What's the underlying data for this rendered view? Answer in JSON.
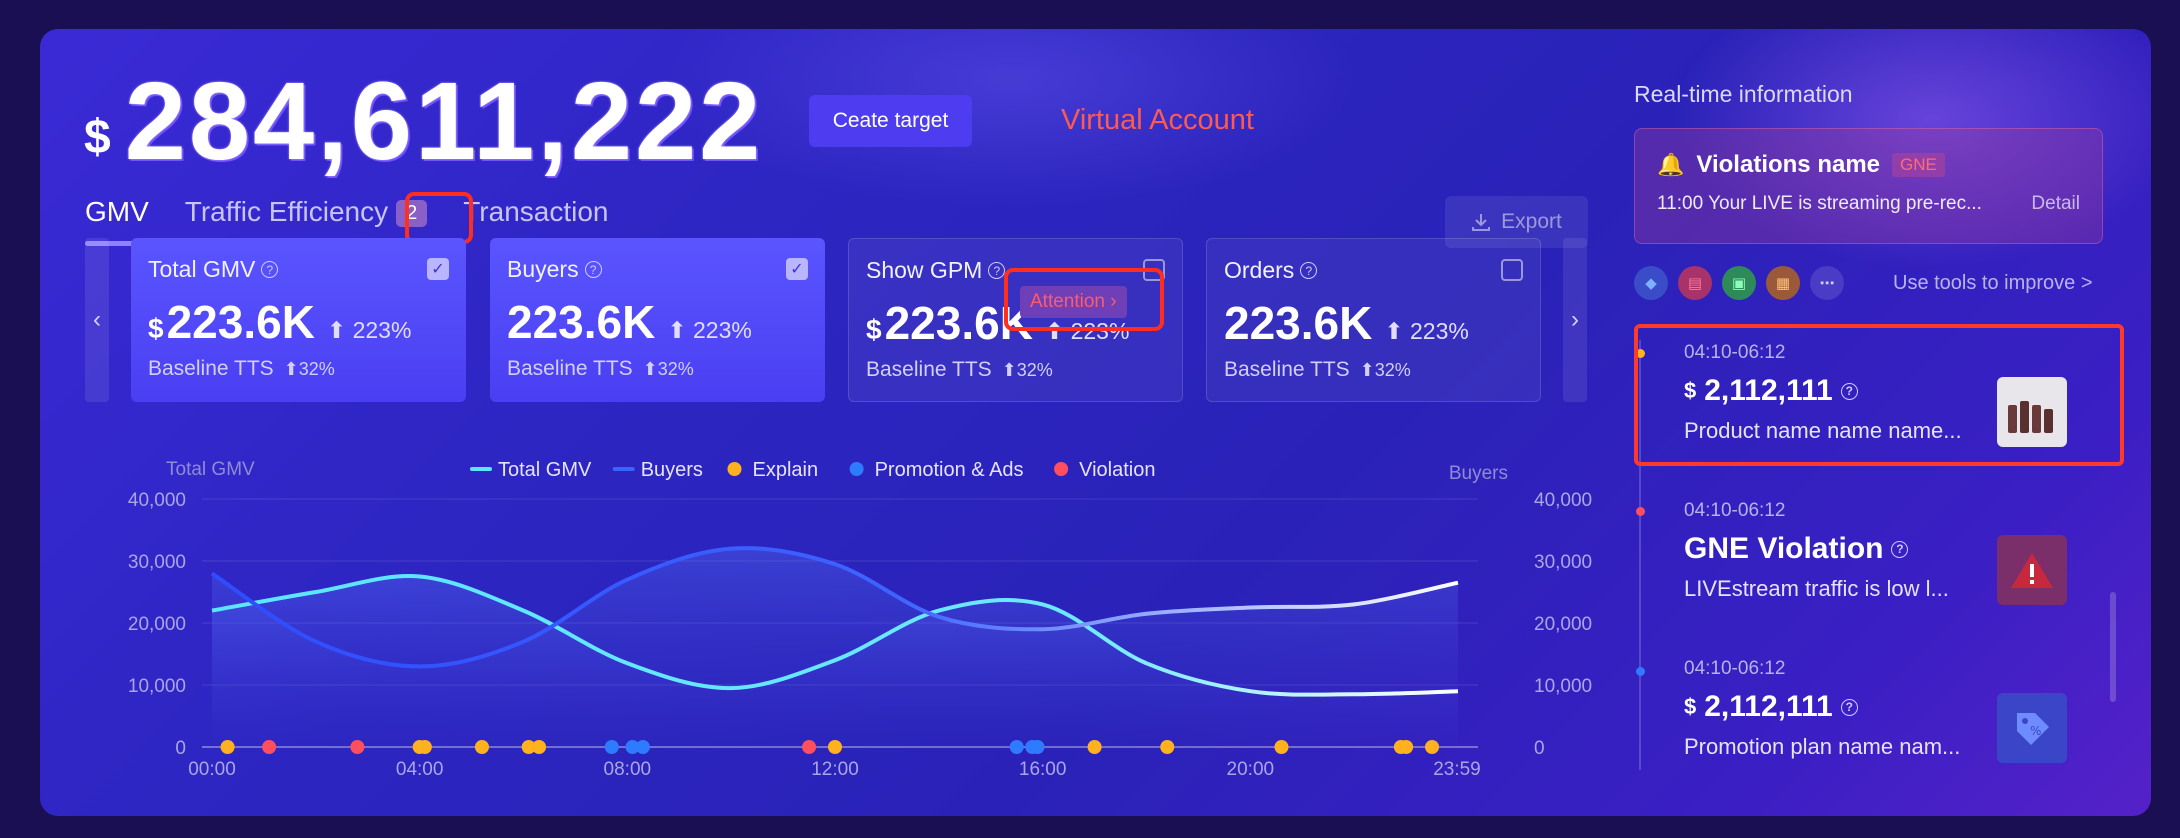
{
  "header": {
    "currency": "$",
    "total_amount": "284,611,222",
    "create_target": "Ceate target",
    "virtual_account": "Virtual Account"
  },
  "tabs": [
    {
      "label": "GMV",
      "active": true
    },
    {
      "label": "Traffic Efficiency",
      "badge": "2"
    },
    {
      "label": "Transaction"
    }
  ],
  "export_label": "Export",
  "metrics": [
    {
      "title": "Total GMV",
      "currency": "$",
      "value": "223.6K",
      "change": "223%",
      "baseline": "Baseline TTS",
      "baseline_change": "32%",
      "checked": true
    },
    {
      "title": "Buyers",
      "currency": "",
      "value": "223.6K",
      "change": "223%",
      "baseline": "Baseline TTS",
      "baseline_change": "32%",
      "checked": true
    },
    {
      "title": "Show GPM",
      "currency": "$",
      "value": "223.6K",
      "change": "223%",
      "baseline": "Baseline TTS",
      "baseline_change": "32%",
      "checked": false,
      "tag": "Attention"
    },
    {
      "title": "Orders",
      "currency": "",
      "value": "223.6K",
      "change": "223%",
      "baseline": "Baseline TTS",
      "baseline_change": "32%",
      "checked": false
    }
  ],
  "chart_data": {
    "type": "line",
    "ylabel_left": "Total GMV",
    "ylabel_right": "Buyers",
    "ylim": [
      0,
      40000
    ],
    "yticks": [
      "0",
      "10,000",
      "20,000",
      "30,000",
      "40,000"
    ],
    "xticks": [
      "00:00",
      "04:00",
      "08:00",
      "12:00",
      "16:00",
      "20:00",
      "23:59"
    ],
    "legend": [
      "Total GMV",
      "Buyers",
      "Explain",
      "Promotion & Ads",
      "Violation"
    ],
    "colors": {
      "Total GMV": "#5be6ff",
      "Buyers": "#3d63ff",
      "Explain": "#ffb21e",
      "Promotion & Ads": "#2f7bff",
      "Violation": "#ff4f5e"
    },
    "x": [
      0,
      2,
      4,
      6,
      8,
      10,
      12,
      14,
      16,
      18,
      20,
      22,
      24
    ],
    "series": [
      {
        "name": "Total GMV",
        "values": [
          22000,
          25000,
          27500,
          22000,
          13500,
          9500,
          14000,
          22000,
          23000,
          13500,
          9000,
          8500,
          9000
        ]
      },
      {
        "name": "Buyers",
        "values": [
          28000,
          17000,
          13000,
          17000,
          27000,
          32000,
          29500,
          21000,
          19000,
          21500,
          22500,
          23000,
          26500
        ]
      }
    ],
    "events": {
      "Explain": [
        0.3,
        4.0,
        4.1,
        5.2,
        6.1,
        6.3,
        12.0,
        17.0,
        18.4,
        20.6,
        22.9,
        23.0,
        23.5
      ],
      "Promotion & Ads": [
        7.7,
        8.1,
        8.3,
        15.5,
        15.8,
        15.9
      ],
      "Violation": [
        1.1,
        2.8,
        11.5
      ]
    }
  },
  "realtime": {
    "title": "Real-time information",
    "violation": {
      "name": "Violations name",
      "tag": "GNE",
      "text": "11:00 Your LIVE is streaming pre-rec...",
      "detail": "Detail"
    },
    "tools_link": "Use tools to improve >",
    "timeline": [
      {
        "time": "04:10-06:12",
        "currency": "$",
        "value": "2,112,111",
        "desc": "Product name name name...",
        "dot": "#ffb21e",
        "thumb": "product"
      },
      {
        "time": "04:10-06:12",
        "currency": "",
        "value": "GNE Violation",
        "desc": "LIVEstream  traffic  is low l...",
        "dot": "#ff4f5e",
        "thumb": "warning"
      },
      {
        "time": "04:10-06:12",
        "currency": "$",
        "value": "2,112,111",
        "desc": "Promotion plan name nam...",
        "dot": "#2f7bff",
        "thumb": "promo"
      }
    ]
  }
}
